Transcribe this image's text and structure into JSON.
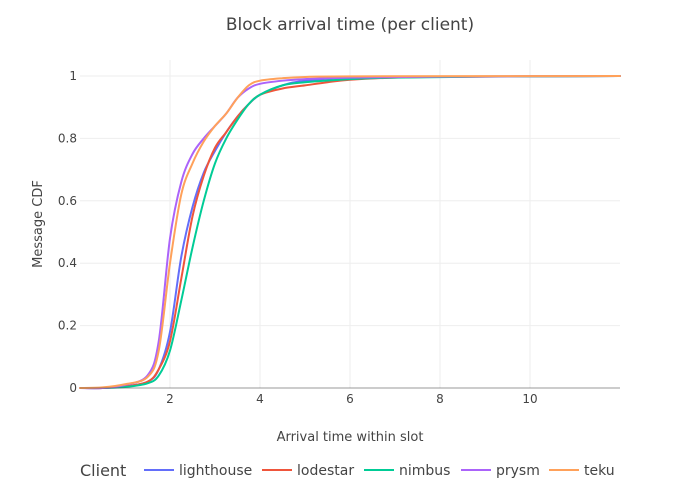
{
  "chart_data": {
    "type": "line",
    "title": "Block arrival time (per client)",
    "xlabel": "Arrival time within slot",
    "ylabel": "Message CDF",
    "xlim": [
      0,
      12
    ],
    "ylim": [
      0,
      1
    ],
    "x_ticks": [
      2,
      4,
      6,
      8,
      10
    ],
    "x_tick_labels": [
      "2",
      "4",
      "6",
      "8",
      "10"
    ],
    "y_ticks": [
      0,
      0.2,
      0.4,
      0.6,
      0.8,
      1
    ],
    "y_tick_labels": [
      "0",
      "0.2",
      "0.4",
      "0.6",
      "0.8",
      "1"
    ],
    "grid": true,
    "legend": {
      "title": "Client",
      "position": "bottom"
    },
    "series": [
      {
        "name": "lighthouse",
        "color": "#636efa",
        "points": [
          [
            0,
            0
          ],
          [
            0.5,
            0
          ],
          [
            1,
            0.005
          ],
          [
            1.5,
            0.02
          ],
          [
            1.75,
            0.06
          ],
          [
            2,
            0.18
          ],
          [
            2.25,
            0.42
          ],
          [
            2.5,
            0.58
          ],
          [
            2.75,
            0.69
          ],
          [
            3,
            0.76
          ],
          [
            3.25,
            0.82
          ],
          [
            3.5,
            0.87
          ],
          [
            3.75,
            0.91
          ],
          [
            4,
            0.94
          ],
          [
            4.5,
            0.97
          ],
          [
            5,
            0.985
          ],
          [
            6,
            0.995
          ],
          [
            8,
            0.998
          ],
          [
            10,
            0.999
          ],
          [
            12,
            1
          ]
        ]
      },
      {
        "name": "lodestar",
        "color": "#ef553b",
        "points": [
          [
            0,
            0
          ],
          [
            0.5,
            0
          ],
          [
            1,
            0.005
          ],
          [
            1.5,
            0.02
          ],
          [
            1.75,
            0.06
          ],
          [
            2,
            0.15
          ],
          [
            2.25,
            0.35
          ],
          [
            2.5,
            0.55
          ],
          [
            2.75,
            0.68
          ],
          [
            3,
            0.77
          ],
          [
            3.25,
            0.82
          ],
          [
            3.5,
            0.87
          ],
          [
            3.75,
            0.91
          ],
          [
            4,
            0.94
          ],
          [
            4.5,
            0.96
          ],
          [
            5,
            0.97
          ],
          [
            5.5,
            0.98
          ],
          [
            6,
            0.988
          ],
          [
            7,
            0.995
          ],
          [
            8,
            0.997
          ],
          [
            10,
            0.999
          ],
          [
            12,
            1
          ]
        ]
      },
      {
        "name": "nimbus",
        "color": "#00cc96",
        "points": [
          [
            0,
            0
          ],
          [
            0.5,
            0
          ],
          [
            1,
            0.003
          ],
          [
            1.5,
            0.015
          ],
          [
            1.75,
            0.04
          ],
          [
            2,
            0.12
          ],
          [
            2.25,
            0.28
          ],
          [
            2.5,
            0.45
          ],
          [
            2.75,
            0.6
          ],
          [
            3,
            0.72
          ],
          [
            3.25,
            0.8
          ],
          [
            3.5,
            0.86
          ],
          [
            3.75,
            0.91
          ],
          [
            4,
            0.94
          ],
          [
            4.5,
            0.97
          ],
          [
            5,
            0.98
          ],
          [
            6,
            0.99
          ],
          [
            7,
            0.995
          ],
          [
            9,
            0.998
          ],
          [
            12,
            1
          ]
        ]
      },
      {
        "name": "prysm",
        "color": "#ab63fa",
        "points": [
          [
            0,
            0
          ],
          [
            0.5,
            0
          ],
          [
            1,
            0.01
          ],
          [
            1.5,
            0.04
          ],
          [
            1.75,
            0.15
          ],
          [
            2,
            0.48
          ],
          [
            2.25,
            0.66
          ],
          [
            2.5,
            0.75
          ],
          [
            2.75,
            0.8
          ],
          [
            3,
            0.84
          ],
          [
            3.25,
            0.88
          ],
          [
            3.5,
            0.93
          ],
          [
            3.75,
            0.96
          ],
          [
            4,
            0.975
          ],
          [
            4.5,
            0.985
          ],
          [
            5,
            0.99
          ],
          [
            6,
            0.995
          ],
          [
            8,
            0.998
          ],
          [
            12,
            1
          ]
        ]
      },
      {
        "name": "teku",
        "color": "#ffa15a",
        "points": [
          [
            0,
            0
          ],
          [
            0.5,
            0.002
          ],
          [
            1,
            0.012
          ],
          [
            1.5,
            0.035
          ],
          [
            1.75,
            0.12
          ],
          [
            2,
            0.4
          ],
          [
            2.25,
            0.62
          ],
          [
            2.5,
            0.72
          ],
          [
            2.75,
            0.79
          ],
          [
            3,
            0.84
          ],
          [
            3.25,
            0.88
          ],
          [
            3.5,
            0.93
          ],
          [
            3.75,
            0.97
          ],
          [
            4,
            0.985
          ],
          [
            4.5,
            0.993
          ],
          [
            5,
            0.997
          ],
          [
            6,
            0.999
          ],
          [
            12,
            1
          ]
        ]
      }
    ]
  }
}
